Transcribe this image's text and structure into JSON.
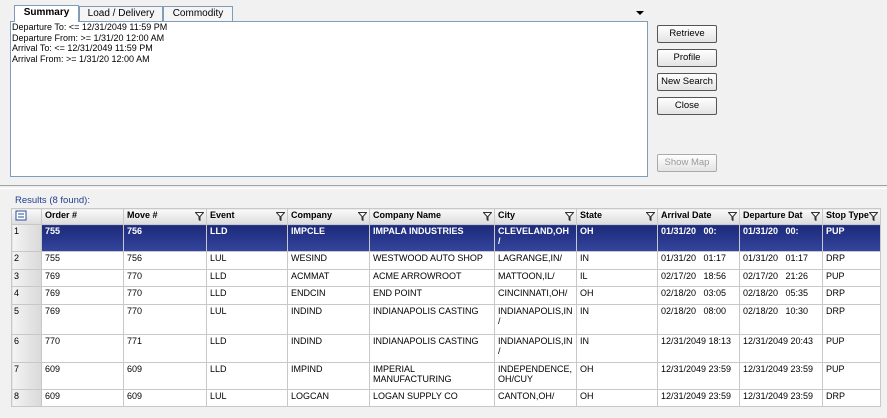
{
  "tabs": [
    "Summary",
    "Load / Delivery",
    "Commodity"
  ],
  "criteria": [
    "Departure To: <= 12/31/2049 11:59 PM",
    "Departure From: >= 1/31/20   12:00 AM",
    "Arrival To: <= 12/31/2049 11:59 PM",
    "Arrival From: >= 1/31/20   12:00 AM"
  ],
  "buttons": [
    "Retrieve",
    "Profile",
    "New Search",
    "Close"
  ],
  "show_map": "Show Map",
  "results_label": "Results (8 found):",
  "table": {
    "columns": [
      "Order #",
      "Move #",
      "Event",
      "Company",
      "Company Name",
      "City",
      "State",
      "Arrival Date",
      "Departure Dat",
      "Stop Type"
    ],
    "rows": [
      {
        "number": 1,
        "cells": [
          "755",
          "756",
          "LLD",
          "IMPCLE",
          "IMPALA INDUSTRIES",
          "CLEVELAND,OH /",
          "OH",
          "01/31/20   00:",
          "01/31/20   00:",
          "PUP"
        ]
      },
      {
        "number": 2,
        "cells": [
          "755",
          "756",
          "LUL",
          "WESIND",
          "WESTWOOD AUTO SHOP",
          "LAGRANGE,IN/",
          "IN",
          "01/31/20   01:17",
          "01/31/20   01:17",
          "DRP"
        ]
      },
      {
        "number": 3,
        "cells": [
          "769",
          "770",
          "LLD",
          "ACMMAT",
          "ACME ARROWROOT",
          "MATTOON,IL/",
          "IL",
          "02/17/20   18:56",
          "02/17/20   21:26",
          "PUP"
        ]
      },
      {
        "number": 4,
        "cells": [
          "769",
          "770",
          "LLD",
          "ENDCIN",
          "END POINT",
          "CINCINNATI,OH/",
          "OH",
          "02/18/20   03:05",
          "02/18/20   05:35",
          "DRP"
        ]
      },
      {
        "number": 5,
        "cells": [
          "769",
          "770",
          "LUL",
          "INDIND",
          "INDIANAPOLIS CASTING",
          "INDIANAPOLIS,IN /",
          "IN",
          "02/18/20   08:00",
          "02/18/20   10:30",
          "DRP"
        ]
      },
      {
        "number": 6,
        "cells": [
          "770",
          "771",
          "LLD",
          "INDIND",
          "INDIANAPOLIS CASTING",
          "INDIANAPOLIS,IN /",
          "IN",
          "12/31/2049 18:13",
          "12/31/2049 20:43",
          "PUP"
        ]
      },
      {
        "number": 7,
        "cells": [
          "609",
          "609",
          "LLD",
          "IMPIND",
          "IMPERIAL MANUFACTURING",
          "INDEPENDENCE, OH/CUY",
          "OH",
          "12/31/2049 23:59",
          "12/31/2049 23:59",
          "PUP"
        ]
      },
      {
        "number": 8,
        "cells": [
          "609",
          "609",
          "LUL",
          "LOGCAN",
          "LOGAN SUPPLY CO",
          "CANTON,OH/",
          "OH",
          "12/31/2049 23:59",
          "12/31/2049 23:59",
          "DRP"
        ]
      }
    ]
  }
}
